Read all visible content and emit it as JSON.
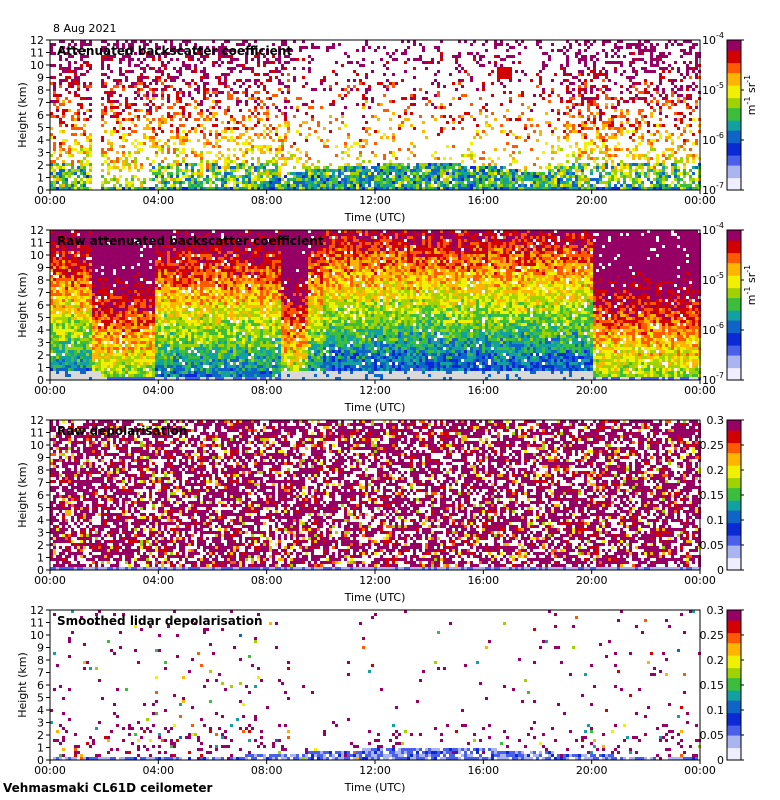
{
  "header": {
    "date": "8 Aug 2021"
  },
  "footer": {
    "site": "Vehmasmaki CL61D ceilometer"
  },
  "colors": {
    "background": "#ffffff",
    "missing": "#d9d9d9",
    "colormap": [
      "#eeeeff",
      "#aab4f0",
      "#4a60e8",
      "#0a2ad6",
      "#0f64c8",
      "#13a0a0",
      "#3cbe3c",
      "#a0d200",
      "#f0f000",
      "#ffb400",
      "#ff5a00",
      "#d20000",
      "#960064"
    ]
  },
  "chart_data": [
    {
      "type": "heatmap",
      "title": "Attenuated backscatter coefficient",
      "xlabel": "Time (UTC)",
      "ylabel": "Height (km)",
      "x_ticks": [
        "00:00",
        "04:00",
        "08:00",
        "12:00",
        "16:00",
        "20:00",
        "00:00"
      ],
      "y_ticks": [
        "0",
        "1",
        "2",
        "3",
        "4",
        "5",
        "6",
        "7",
        "8",
        "9",
        "10",
        "11",
        "12"
      ],
      "ylim": [
        0,
        12
      ],
      "colorbar": {
        "scale": "log",
        "range": [
          1e-07,
          0.0001
        ],
        "labels": [
          "10-7",
          "10-6",
          "10-5",
          "10-4"
        ],
        "unit": "m-1 sr-1"
      }
    },
    {
      "type": "heatmap",
      "title": "Raw attenuated backscatter coefficient",
      "xlabel": "Time (UTC)",
      "ylabel": "Height (km)",
      "x_ticks": [
        "00:00",
        "04:00",
        "08:00",
        "12:00",
        "16:00",
        "20:00",
        "00:00"
      ],
      "y_ticks": [
        "0",
        "1",
        "2",
        "3",
        "4",
        "5",
        "6",
        "7",
        "8",
        "9",
        "10",
        "11",
        "12"
      ],
      "ylim": [
        0,
        12
      ],
      "colorbar": {
        "scale": "log",
        "range": [
          1e-07,
          0.0001
        ],
        "labels": [
          "10-7",
          "10-6",
          "10-5",
          "10-4"
        ],
        "unit": "m-1 sr-1"
      }
    },
    {
      "type": "heatmap",
      "title": "Raw depolarisation",
      "xlabel": "Time (UTC)",
      "ylabel": "Height (km)",
      "x_ticks": [
        "00:00",
        "04:00",
        "08:00",
        "12:00",
        "16:00",
        "20:00",
        "00:00"
      ],
      "y_ticks": [
        "0",
        "1",
        "2",
        "3",
        "4",
        "5",
        "6",
        "7",
        "8",
        "9",
        "10",
        "11",
        "12"
      ],
      "ylim": [
        0,
        12
      ],
      "colorbar": {
        "scale": "linear",
        "range": [
          0,
          0.3
        ],
        "labels": [
          "0",
          "0.05",
          "0.1",
          "0.15",
          "0.2",
          "0.25",
          "0.3"
        ],
        "unit": ""
      }
    },
    {
      "type": "heatmap",
      "title": "Smoothed lidar depolarisation",
      "xlabel": "Time (UTC)",
      "ylabel": "Height (km)",
      "x_ticks": [
        "00:00",
        "04:00",
        "08:00",
        "12:00",
        "16:00",
        "20:00",
        "00:00"
      ],
      "y_ticks": [
        "0",
        "1",
        "2",
        "3",
        "4",
        "5",
        "6",
        "7",
        "8",
        "9",
        "10",
        "11",
        "12"
      ],
      "ylim": [
        0,
        12
      ],
      "colorbar": {
        "scale": "linear",
        "range": [
          0,
          0.3
        ],
        "labels": [
          "0",
          "0.05",
          "0.1",
          "0.15",
          "0.2",
          "0.25",
          "0.3"
        ],
        "unit": ""
      }
    }
  ]
}
